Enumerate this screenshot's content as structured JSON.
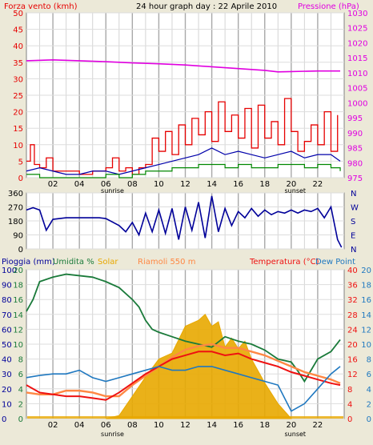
{
  "header": {
    "left_label": "Forza vento (kmh)",
    "center_title": "24 hour graph day : 22 Aprile 2010",
    "right_label": "Pressione (hPa)"
  },
  "bottom_header": {
    "pioggia": "Pioggia (mm)",
    "umidita": "Umidita %",
    "solar": "Solar",
    "riamoli": "Riamoli 550 m",
    "temperatura": "Temperatura (°C)",
    "dew_point": "Dew Point"
  },
  "x_ticks": [
    "02",
    "04",
    "06",
    "08",
    "10",
    "12",
    "14",
    "16",
    "18",
    "20",
    "22"
  ],
  "x_annotations": {
    "sunrise": "sunrise",
    "sunset": "sunset",
    "sunrise_hour": 6.5,
    "sunset_hour": 20.3
  },
  "colors": {
    "background": "#ece9d8",
    "plot_bg": "#ffffff",
    "grid": "#c8c8c8",
    "dark_grid": "#a0a0a0",
    "wind_speed": "#e60000",
    "wind_gust_green": "#008800",
    "wind_avg_blue": "#0000aa",
    "pressure": "#e000e0",
    "direction": "#000099",
    "humidity": "#1a7a3a",
    "solar": "#e8a800",
    "temperature": "#ee1111",
    "temperature_riamoli": "#ff8844",
    "dew_point": "#1f78c0",
    "rain": "#cc4444"
  },
  "chart_data": [
    {
      "type": "line",
      "name": "wind_pressure",
      "x_range": [
        0,
        24
      ],
      "y_left": {
        "label": "Forza vento (kmh)",
        "ticks": [
          0,
          5,
          10,
          15,
          20,
          25,
          30,
          35,
          40,
          45,
          50
        ],
        "range": [
          0,
          50
        ]
      },
      "y_right": {
        "label": "Pressione (hPa)",
        "ticks": [
          975,
          980,
          985,
          990,
          995,
          1000,
          1005,
          1010,
          1015,
          1020,
          1025,
          1030
        ],
        "range": [
          975,
          1030
        ]
      },
      "series": [
        {
          "key": "pressure",
          "axis": "right",
          "x": [
            0,
            2,
            4,
            6,
            8,
            10,
            12,
            14,
            16,
            18,
            19,
            20,
            22,
            23.7
          ],
          "values": [
            1014,
            1014.3,
            1014,
            1013.7,
            1013.3,
            1013,
            1012.6,
            1012,
            1011.4,
            1010.8,
            1010.3,
            1010.4,
            1010.6,
            1010.6
          ]
        },
        {
          "key": "wind_max",
          "axis": "left",
          "x": [
            0,
            0.3,
            0.6,
            1,
            1.5,
            2,
            3,
            4,
            5,
            6,
            6.5,
            7,
            7.5,
            8,
            8.5,
            9,
            9.5,
            10,
            10.5,
            11,
            11.5,
            12,
            12.5,
            13,
            13.5,
            14,
            14.5,
            15,
            15.5,
            16,
            16.5,
            17,
            17.5,
            18,
            18.5,
            19,
            19.5,
            20,
            20.5,
            21,
            21.5,
            22,
            22.5,
            23,
            23.5
          ],
          "values": [
            5,
            10,
            4,
            3,
            6,
            2,
            2,
            1,
            2,
            3,
            6,
            2,
            3,
            1,
            3,
            4,
            12,
            8,
            14,
            7,
            16,
            10,
            18,
            13,
            20,
            11,
            23,
            14,
            19,
            12,
            21,
            9,
            22,
            12,
            17,
            10,
            24,
            14,
            8,
            11,
            16,
            10,
            20,
            8,
            19
          ]
        },
        {
          "key": "wind_avg",
          "axis": "left",
          "x": [
            0,
            1,
            2,
            3,
            4,
            5,
            6,
            7,
            8,
            9,
            10,
            11,
            12,
            13,
            14,
            15,
            16,
            17,
            18,
            19,
            20,
            21,
            22,
            23,
            23.7
          ],
          "values": [
            2,
            3,
            2,
            1,
            1,
            2,
            2,
            1,
            2,
            3,
            4,
            5,
            6,
            7,
            9,
            7,
            8,
            7,
            6,
            7,
            8,
            6,
            7,
            7,
            5
          ]
        },
        {
          "key": "wind_green",
          "axis": "left",
          "x": [
            0,
            1,
            2,
            3,
            4,
            5,
            6,
            7,
            8,
            9,
            10,
            11,
            12,
            13,
            14,
            15,
            16,
            17,
            18,
            19,
            20,
            21,
            22,
            23,
            23.7
          ],
          "values": [
            1,
            0,
            0,
            0,
            0,
            0,
            1,
            0,
            1,
            2,
            2,
            3,
            3,
            4,
            4,
            3,
            4,
            3,
            3,
            4,
            4,
            3,
            4,
            3,
            2
          ]
        }
      ]
    },
    {
      "type": "line",
      "name": "wind_direction",
      "x_range": [
        0,
        24
      ],
      "y_left": {
        "ticks": [
          0,
          90,
          180,
          270,
          360
        ],
        "range": [
          0,
          360
        ]
      },
      "y_right": {
        "labels": [
          "N",
          "W",
          "S",
          "E",
          "N"
        ]
      },
      "series": [
        {
          "key": "direction",
          "x": [
            0,
            0.5,
            1,
            1.5,
            2,
            3,
            4,
            5,
            5.5,
            6,
            7,
            7.5,
            8,
            8.5,
            9,
            9.5,
            10,
            10.5,
            11,
            11.5,
            12,
            12.5,
            13,
            13.5,
            14,
            14.5,
            15,
            15.5,
            16,
            16.5,
            17,
            17.5,
            18,
            18.5,
            19,
            19.5,
            20,
            20.5,
            21,
            21.5,
            22,
            22.5,
            23,
            23.5,
            23.8
          ],
          "values": [
            250,
            265,
            250,
            120,
            190,
            200,
            200,
            200,
            200,
            195,
            150,
            110,
            170,
            90,
            230,
            110,
            250,
            100,
            260,
            60,
            270,
            120,
            300,
            70,
            340,
            110,
            260,
            150,
            240,
            200,
            260,
            210,
            250,
            220,
            240,
            230,
            250,
            230,
            250,
            240,
            260,
            200,
            270,
            60,
            10
          ]
        }
      ]
    },
    {
      "type": "line",
      "name": "rain_humidity_temp",
      "x_range": [
        0,
        24
      ],
      "y_left_outer": {
        "label": "Pioggia (mm)",
        "ticks": [
          0,
          10,
          20,
          30,
          40,
          50,
          60,
          70,
          80,
          90,
          100
        ],
        "range": [
          0,
          100
        ]
      },
      "y_left_inner": {
        "label": "Umidita %",
        "ticks": [
          0,
          2,
          4,
          6,
          8,
          10,
          12,
          14,
          16,
          18,
          20
        ],
        "range": [
          0,
          20
        ]
      },
      "y_right_inner": {
        "label": "Temperatura (°C)",
        "ticks": [
          0,
          4,
          8,
          12,
          16,
          20,
          24,
          28,
          32,
          36,
          40
        ],
        "range": [
          0,
          40
        ]
      },
      "y_right_outer": {
        "label": "Dew Point",
        "ticks": [
          0,
          2,
          4,
          6,
          8,
          10,
          12,
          14,
          16,
          18,
          20
        ],
        "range": [
          0,
          20
        ]
      },
      "series": [
        {
          "key": "humidity",
          "axis": "humidity_pct",
          "x": [
            0,
            0.5,
            1,
            2,
            3,
            4,
            5,
            6,
            7,
            8,
            8.5,
            9,
            9.5,
            10,
            11,
            12,
            13,
            14,
            15,
            16,
            17,
            18,
            19,
            20,
            20.5,
            21,
            22,
            23,
            23.7
          ],
          "values": [
            72,
            80,
            92,
            95,
            97,
            96,
            95,
            92,
            88,
            80,
            75,
            66,
            60,
            58,
            55,
            52,
            50,
            48,
            55,
            52,
            50,
            46,
            40,
            38,
            32,
            25,
            40,
            45,
            53
          ]
        },
        {
          "key": "temperature",
          "axis": "temp_c",
          "x": [
            0,
            1,
            2,
            3,
            4,
            5,
            6,
            7,
            8,
            9,
            10,
            11,
            12,
            13,
            14,
            15,
            16,
            17,
            18,
            19,
            20,
            21,
            22,
            23,
            23.7
          ],
          "values": [
            9,
            7,
            6.5,
            6,
            6,
            5.5,
            5,
            7,
            9.5,
            12,
            14,
            16,
            17,
            18,
            18,
            17,
            17.5,
            16,
            15,
            14,
            12.5,
            11.5,
            10.5,
            9.5,
            9
          ]
        },
        {
          "key": "temperature_riamoli",
          "axis": "temp_c",
          "x": [
            0,
            1,
            2,
            3,
            4,
            5,
            6,
            7,
            8,
            9,
            10,
            11,
            12,
            13,
            14,
            15,
            16,
            17,
            18,
            19,
            20,
            21,
            22,
            23,
            23.7
          ],
          "values": [
            7,
            6.5,
            6.5,
            7.5,
            7.5,
            7,
            6,
            6,
            9,
            11.5,
            14,
            16.5,
            18.5,
            19.5,
            20,
            19,
            19,
            18,
            17,
            15.5,
            14,
            12.5,
            11.5,
            10.5,
            9.5
          ]
        },
        {
          "key": "dew_point",
          "axis": "dew",
          "x": [
            0,
            1,
            2,
            3,
            4,
            5,
            6,
            7,
            8,
            9,
            10,
            11,
            12,
            13,
            14,
            15,
            16,
            17,
            18,
            19,
            20,
            21,
            22,
            23,
            23.7
          ],
          "values": [
            5.5,
            5.8,
            6,
            6,
            6.5,
            5.5,
            5,
            5.5,
            6,
            6.5,
            7,
            6.5,
            6.5,
            7,
            7,
            6.5,
            6,
            5.5,
            5,
            4.5,
            1,
            2,
            4,
            6,
            7
          ]
        },
        {
          "key": "solar",
          "axis": "humidity_pct",
          "x": [
            6,
            7,
            8,
            9,
            10,
            11,
            12,
            13,
            13.5,
            14,
            14.5,
            15,
            15.5,
            16,
            16.5,
            17,
            18,
            19,
            20
          ],
          "values": [
            0,
            2,
            15,
            28,
            40,
            44,
            62,
            66,
            70,
            62,
            65,
            48,
            54,
            47,
            52,
            40,
            24,
            10,
            0
          ]
        }
      ]
    }
  ]
}
